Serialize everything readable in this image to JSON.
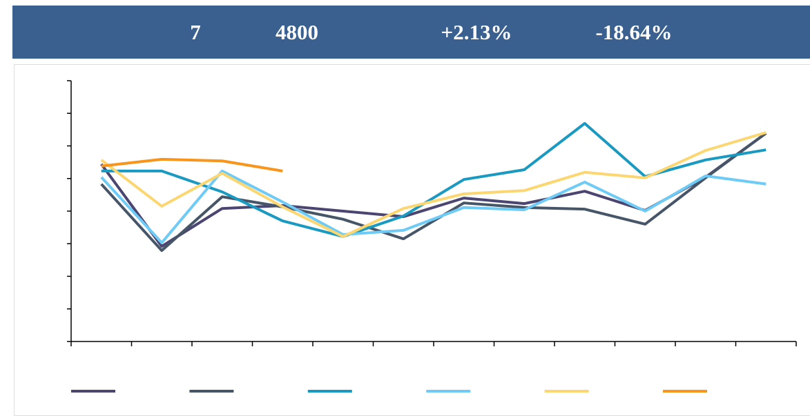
{
  "header": {
    "stats": [
      "7",
      "4800",
      "+2.13%",
      "-18.64%"
    ]
  },
  "chart_data": {
    "type": "line",
    "categories": [
      null,
      null,
      null,
      null,
      null,
      null,
      null,
      null,
      null,
      null,
      null,
      null
    ],
    "series": [
      {
        "color": "#4b4572",
        "values": [
          5.44,
          2.92,
          4.08,
          4.17,
          4.0,
          3.83,
          4.4,
          4.23,
          4.61,
          4.02,
          5.04,
          6.39
        ]
      },
      {
        "color": "#465567",
        "values": [
          4.83,
          2.79,
          4.44,
          4.13,
          3.75,
          3.15,
          4.25,
          4.11,
          4.06,
          3.6,
          5.02,
          6.39
        ]
      },
      {
        "color": "#1a9ac0",
        "values": [
          5.23,
          5.23,
          4.59,
          3.7,
          3.22,
          3.85,
          4.97,
          5.27,
          6.69,
          5.06,
          5.57,
          5.88
        ]
      },
      {
        "color": "#6ecbf5",
        "values": [
          5.04,
          3.03,
          5.23,
          4.28,
          3.28,
          3.41,
          4.11,
          4.04,
          4.89,
          4.0,
          5.08,
          4.83
        ]
      },
      {
        "color": "#fcd671",
        "values": [
          5.57,
          4.15,
          5.16,
          4.13,
          3.22,
          4.08,
          4.53,
          4.63,
          5.19,
          5.02,
          5.86,
          6.41
        ]
      },
      {
        "color": "#f7951d",
        "values": [
          5.38,
          5.59,
          5.54,
          5.23,
          null,
          null,
          null,
          null,
          null,
          null,
          null,
          null
        ]
      }
    ],
    "ylim": [
      0,
      8
    ],
    "yticks": [
      0,
      1,
      2,
      3,
      4,
      5,
      6,
      7,
      8
    ]
  }
}
